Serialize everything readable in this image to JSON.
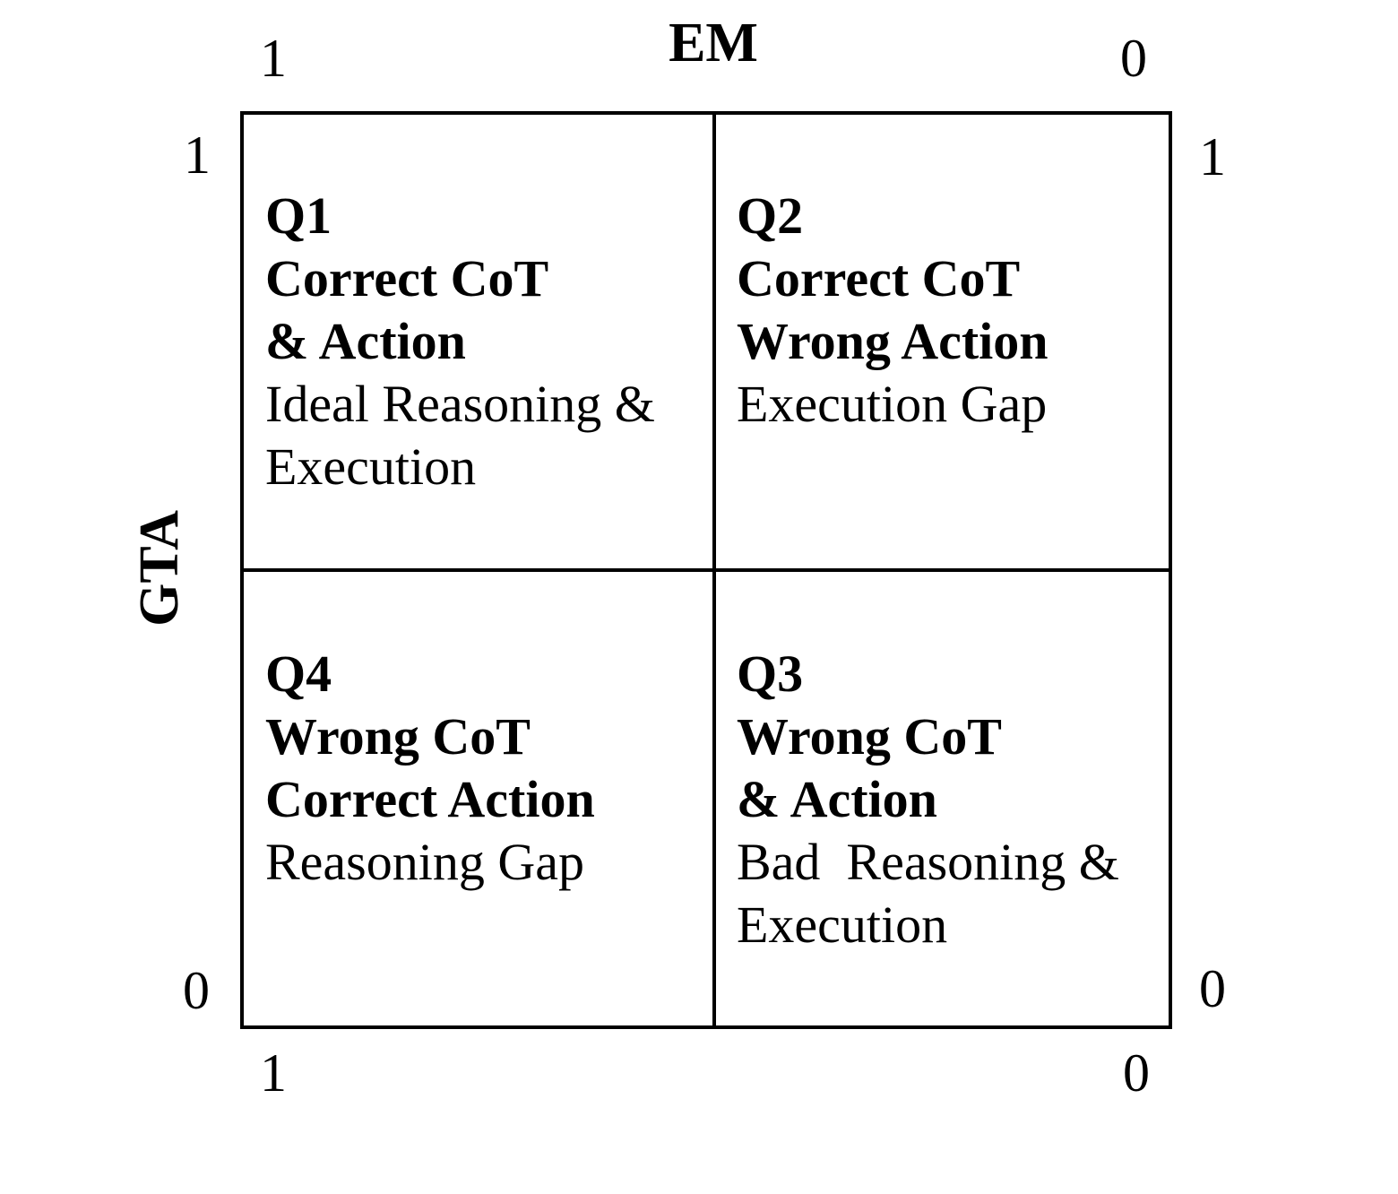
{
  "figure": {
    "background_color": "#ffffff",
    "line_color": "#000000",
    "text_color": "#000000"
  },
  "axes": {
    "em": {
      "label": "EM",
      "tick_left": "1",
      "tick_right": "0"
    },
    "gta": {
      "label": "GTA",
      "tick_top": "1",
      "tick_bottom": "0"
    },
    "right_side": {
      "tick_top": "1",
      "tick_bottom": "0"
    },
    "bottom_side": {
      "tick_left": "1",
      "tick_right": "0"
    }
  },
  "quadrants": {
    "q1": {
      "title_lines": [
        "Q1",
        "Correct CoT",
        "& Action"
      ],
      "desc_lines": [
        "Ideal Reasoning &",
        "Execution"
      ]
    },
    "q2": {
      "title_lines": [
        "Q2",
        "Correct CoT",
        "Wrong Action"
      ],
      "desc_lines": [
        "Execution Gap"
      ]
    },
    "q3": {
      "title_lines": [
        "Q3",
        "Wrong CoT",
        "& Action"
      ],
      "desc_lines": [
        "Bad  Reasoning &",
        "Execution"
      ]
    },
    "q4": {
      "title_lines": [
        "Q4",
        "Wrong CoT",
        "Correct Action"
      ],
      "desc_lines": [
        "Reasoning Gap"
      ]
    }
  }
}
